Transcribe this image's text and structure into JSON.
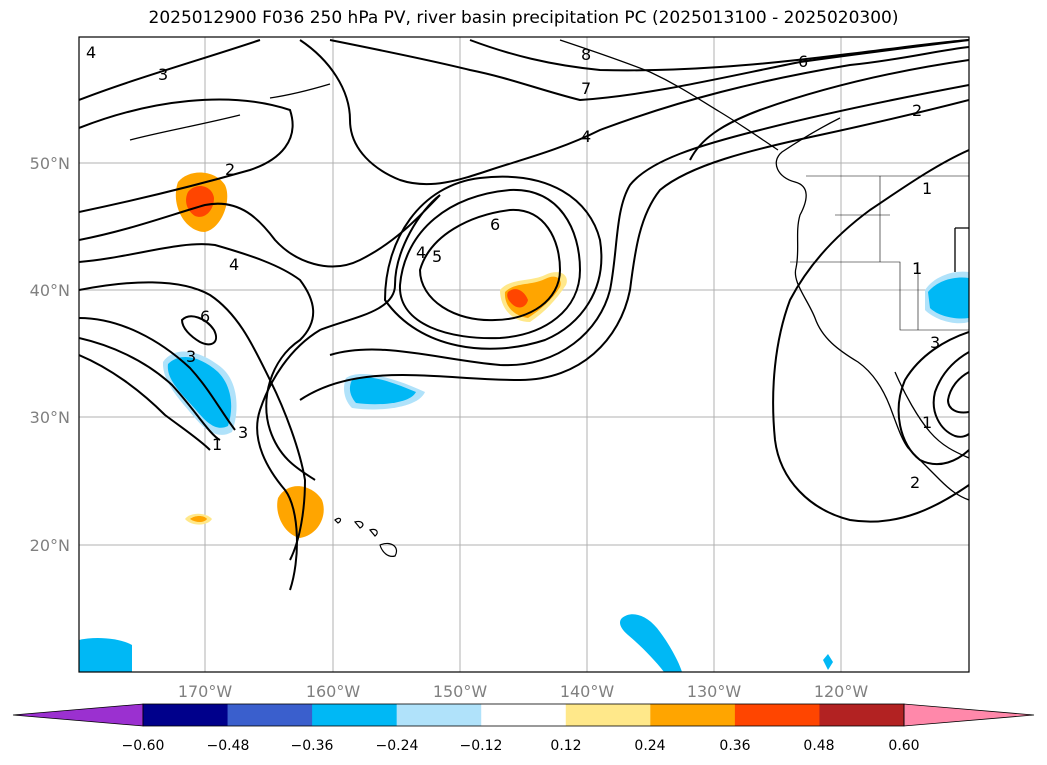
{
  "map": {
    "title": "2025012900 F036 250 hPa PV, river basin precipitation PC (2025013100 - 2025020300)",
    "lat_labels": [
      "50°N",
      "40°N",
      "30°N",
      "20°N"
    ],
    "lon_labels": [
      "170°W",
      "160°W",
      "150°W",
      "140°W",
      "130°W",
      "120°W"
    ],
    "contour_labels": [
      "4",
      "3",
      "8",
      "7",
      "6",
      "2",
      "4",
      "2",
      "1",
      "4",
      "4",
      "5",
      "6",
      "6",
      "1",
      "3",
      "3",
      "1",
      "3",
      "2",
      "1"
    ],
    "colorbar": {
      "tick_labels": [
        "−0.60",
        "−0.48",
        "−0.36",
        "−0.24",
        "−0.12",
        "0.12",
        "0.24",
        "0.36",
        "0.48",
        "0.60"
      ],
      "colors": [
        "#9b30d0",
        "#00008b",
        "#3a5fcd",
        "#00b8f5",
        "#b0e2fa",
        "#ffffff",
        "#ffe88a",
        "#ffa500",
        "#ff4500",
        "#b22222",
        "#ff88aa"
      ]
    }
  }
}
